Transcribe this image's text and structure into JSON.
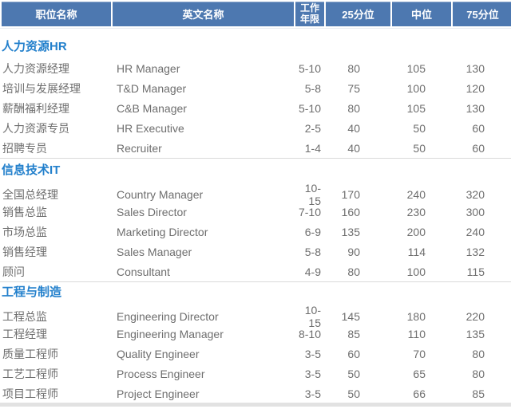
{
  "colors": {
    "header_bg": "#4d78b0",
    "header_text": "#ffffff",
    "section_title": "#2380cc",
    "body_text": "#6e6e6e",
    "separator": "#d9d9d9",
    "bottom_bar": "#e2e2e2"
  },
  "header": {
    "columns": [
      "职位名称",
      "英文名称",
      "工作\n年限",
      "25分位",
      "中位",
      "75分位"
    ]
  },
  "sections": [
    {
      "title": "人力资源HR",
      "rows": [
        {
          "zh": "人力资源经理",
          "en": "HR Manager",
          "years": "5-10",
          "p25": "80",
          "median": "105",
          "p75": "130"
        },
        {
          "zh": "培训与发展经理",
          "en": "T&D Manager",
          "years": "5-8",
          "p25": "75",
          "median": "100",
          "p75": "120"
        },
        {
          "zh": "薪酬福利经理",
          "en": "C&B Manager",
          "years": "5-10",
          "p25": "80",
          "median": "105",
          "p75": "130"
        },
        {
          "zh": "人力资源专员",
          "en": "HR Executive",
          "years": "2-5",
          "p25": "40",
          "median": "50",
          "p75": "60"
        },
        {
          "zh": "招聘专员",
          "en": "Recruiter",
          "years": "1-4",
          "p25": "40",
          "median": "50",
          "p75": "60"
        }
      ]
    },
    {
      "title": "信息技术IT",
      "rows": [
        {
          "zh": "全国总经理",
          "en": "Country Manager",
          "years": "10-15",
          "p25": "170",
          "median": "240",
          "p75": "320"
        },
        {
          "zh": "销售总监",
          "en": "Sales Director",
          "years": "7-10",
          "p25": "160",
          "median": "230",
          "p75": "300"
        },
        {
          "zh": "市场总监",
          "en": "Marketing Director",
          "years": "6-9",
          "p25": "135",
          "median": "200",
          "p75": "240"
        },
        {
          "zh": "销售经理",
          "en": "Sales Manager",
          "years": "5-8",
          "p25": "90",
          "median": "114",
          "p75": "132"
        },
        {
          "zh": "顾问",
          "en": "Consultant",
          "years": "4-9",
          "p25": "80",
          "median": "100",
          "p75": "115"
        }
      ]
    },
    {
      "title": "工程与制造",
      "rows": [
        {
          "zh": "工程总监",
          "en": "Engineering Director",
          "years": "10-15",
          "p25": "145",
          "median": "180",
          "p75": "220"
        },
        {
          "zh": "工程经理",
          "en": "Engineering Manager",
          "years": "8-10",
          "p25": "85",
          "median": "110",
          "p75": "135"
        },
        {
          "zh": "质量工程师",
          "en": "Quality Engineer",
          "years": "3-5",
          "p25": "60",
          "median": "70",
          "p75": "80"
        },
        {
          "zh": "工艺工程师",
          "en": "Process Engineer",
          "years": "3-5",
          "p25": "50",
          "median": "65",
          "p75": "80"
        },
        {
          "zh": "项目工程师",
          "en": "Project Engineer",
          "years": "3-5",
          "p25": "50",
          "median": "66",
          "p75": "85"
        }
      ]
    }
  ]
}
